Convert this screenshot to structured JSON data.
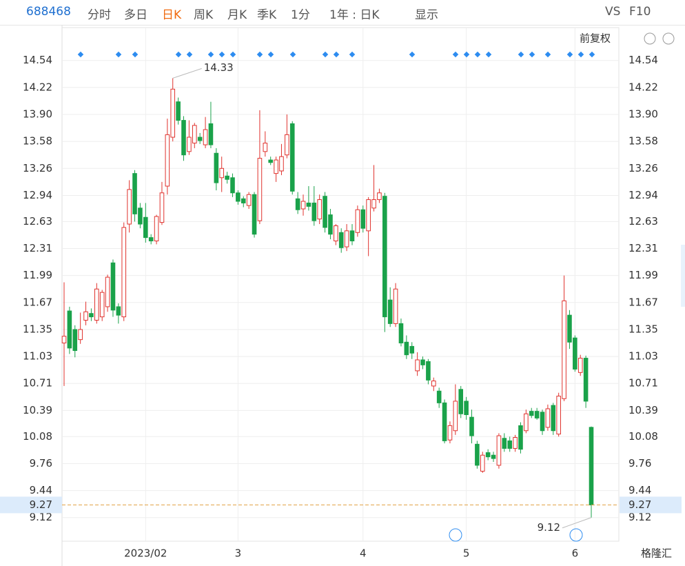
{
  "toolbar": {
    "code": "688468",
    "tabs": [
      "分时",
      "多日",
      "日K",
      "周K",
      "月K",
      "季K",
      "1分",
      "1年 : 日K",
      "显示",
      "VS",
      "F10"
    ],
    "active": "日K"
  },
  "adjust": "前复权",
  "watermark": "格隆汇",
  "chart_data": {
    "type": "candlestick",
    "categories": [
      null,
      null,
      null,
      null,
      null,
      null,
      null,
      null,
      null,
      null,
      null,
      null,
      null,
      null,
      null,
      "2023/02",
      null,
      null,
      null,
      null,
      null,
      null,
      null,
      null,
      null,
      null,
      null,
      null,
      null,
      null,
      null,
      null,
      "3",
      null,
      null,
      null,
      null,
      null,
      null,
      null,
      null,
      null,
      null,
      null,
      null,
      null,
      null,
      null,
      null,
      null,
      null,
      null,
      null,
      null,
      null,
      "4",
      null,
      null,
      null,
      null,
      null,
      null,
      null,
      null,
      null,
      null,
      null,
      null,
      null,
      null,
      null,
      null,
      null,
      null,
      "5",
      null,
      null,
      null,
      null,
      null,
      null,
      null,
      null,
      null,
      null,
      null,
      null,
      null,
      null,
      null,
      null,
      null,
      null,
      null,
      "6",
      null,
      null,
      null
    ],
    "open": [
      11.19,
      11.57,
      11.35,
      11.23,
      11.46,
      11.54,
      11.46,
      11.5,
      11.62,
      12.14,
      11.62,
      11.5,
      12.6,
      13.2,
      12.79,
      12.68,
      12.44,
      12.4,
      12.62,
      13.05,
      13.63,
      14.05,
      13.83,
      13.46,
      13.56,
      13.63,
      13.54,
      13.79,
      13.44,
      13.15,
      13.17,
      13.15,
      12.97,
      12.9,
      12.82,
      12.95,
      12.64,
      13.46,
      13.36,
      13.2,
      13.23,
      13.42,
      13.79,
      12.9,
      12.78,
      12.85,
      12.85,
      12.66,
      12.93,
      12.71,
      12.4,
      12.5,
      12.33,
      12.52,
      12.5,
      12.77,
      12.52,
      12.79,
      12.89,
      12.93,
      11.7,
      11.42,
      11.42,
      11.2,
      11.15,
      10.86,
      10.99,
      10.97,
      10.68,
      10.62,
      10.48,
      10.04,
      10.15,
      10.64,
      10.5,
      10.31,
      9.99,
      9.67,
      9.89,
      9.86,
      9.74,
      10.06,
      10.03,
      9.94,
      10.21,
      10.15,
      10.38,
      10.38,
      10.37,
      10.19,
      10.45,
      10.11,
      10.53,
      11.52,
      11.25,
      10.84,
      11.01,
      10.19
    ],
    "high": [
      11.91,
      11.62,
      11.4,
      11.55,
      11.68,
      11.6,
      11.9,
      11.82,
      12.0,
      12.18,
      11.66,
      12.62,
      13.12,
      13.24,
      12.85,
      12.85,
      12.48,
      12.71,
      13.1,
      13.85,
      14.33,
      14.1,
      13.88,
      13.83,
      13.8,
      13.68,
      13.87,
      14.05,
      13.5,
      13.4,
      13.22,
      13.2,
      13.0,
      12.93,
      12.98,
      12.98,
      13.95,
      13.7,
      13.4,
      13.4,
      13.55,
      13.9,
      13.82,
      12.98,
      12.95,
      13.05,
      13.05,
      12.95,
      12.98,
      12.78,
      12.6,
      12.55,
      12.6,
      12.6,
      12.82,
      12.82,
      12.92,
      13.3,
      13.02,
      12.97,
      11.85,
      11.9,
      11.48,
      11.28,
      11.2,
      11.08,
      11.03,
      11.0,
      10.78,
      10.66,
      10.52,
      10.26,
      10.7,
      10.68,
      10.55,
      10.4,
      10.03,
      9.9,
      9.93,
      9.9,
      10.12,
      10.12,
      10.08,
      10.1,
      10.25,
      10.4,
      10.42,
      10.42,
      10.4,
      10.46,
      10.48,
      10.6,
      11.99,
      11.58,
      11.28,
      11.05,
      11.04,
      10.2
    ],
    "low": [
      10.68,
      11.06,
      11.02,
      11.18,
      11.4,
      11.45,
      11.42,
      11.45,
      11.56,
      11.5,
      11.42,
      11.45,
      12.5,
      12.63,
      12.55,
      12.38,
      12.36,
      12.36,
      12.59,
      12.95,
      13.58,
      13.78,
      13.35,
      13.42,
      13.5,
      13.55,
      13.5,
      13.5,
      13.0,
      12.98,
      13.08,
      12.92,
      12.83,
      12.8,
      12.78,
      12.44,
      12.6,
      13.4,
      13.3,
      13.1,
      13.18,
      13.38,
      12.95,
      12.72,
      12.7,
      12.76,
      12.58,
      12.6,
      12.5,
      12.42,
      12.35,
      12.26,
      12.28,
      12.35,
      12.45,
      12.5,
      12.22,
      12.75,
      12.85,
      11.32,
      11.38,
      11.38,
      11.15,
      11.0,
      11.0,
      10.8,
      10.88,
      10.7,
      10.62,
      10.42,
      10.0,
      10.0,
      10.1,
      10.3,
      10.28,
      10.0,
      9.7,
      9.65,
      9.8,
      9.78,
      9.7,
      9.9,
      9.9,
      9.9,
      9.88,
      10.12,
      10.3,
      10.28,
      10.1,
      10.15,
      10.1,
      10.08,
      10.5,
      11.12,
      10.85,
      10.8,
      10.42,
      9.12
    ],
    "close": [
      11.27,
      11.13,
      11.1,
      11.35,
      11.56,
      11.5,
      11.83,
      11.79,
      11.97,
      11.58,
      11.52,
      12.56,
      13.01,
      12.72,
      12.6,
      12.44,
      12.4,
      12.69,
      12.97,
      13.66,
      14.2,
      13.83,
      13.42,
      13.63,
      13.77,
      13.59,
      13.72,
      13.54,
      13.09,
      13.26,
      13.13,
      12.97,
      12.87,
      12.85,
      12.95,
      12.48,
      13.38,
      13.56,
      13.33,
      13.36,
      13.4,
      13.66,
      12.99,
      12.77,
      12.87,
      12.81,
      12.64,
      12.89,
      12.56,
      12.48,
      12.58,
      12.32,
      12.52,
      12.4,
      12.77,
      12.55,
      12.89,
      12.89,
      12.97,
      11.5,
      11.42,
      11.83,
      11.19,
      11.05,
      11.07,
      10.99,
      10.93,
      10.75,
      10.74,
      10.48,
      10.03,
      10.21,
      10.5,
      10.35,
      10.34,
      10.09,
      9.74,
      9.86,
      9.84,
      9.82,
      10.09,
      9.94,
      9.94,
      10.07,
      9.93,
      10.35,
      10.33,
      10.3,
      10.15,
      10.41,
      10.15,
      10.56,
      11.69,
      11.2,
      10.88,
      11.01,
      10.5,
      9.27
    ],
    "up_color": "#e0312c",
    "down_color": "#1aa24a",
    "max_label": 14.33,
    "min_label": 9.12,
    "last_price": 9.27,
    "ylim": [
      8.84,
      14.93
    ],
    "yticks": [
      14.54,
      14.22,
      {
        "value": 13.9,
        "label": "13.90"
      },
      13.58,
      13.26,
      12.94,
      12.63,
      12.31,
      11.99,
      11.67,
      11.35,
      11.03,
      10.71,
      10.39,
      10.08,
      9.76,
      9.44,
      9.12
    ],
    "grid": true
  }
}
